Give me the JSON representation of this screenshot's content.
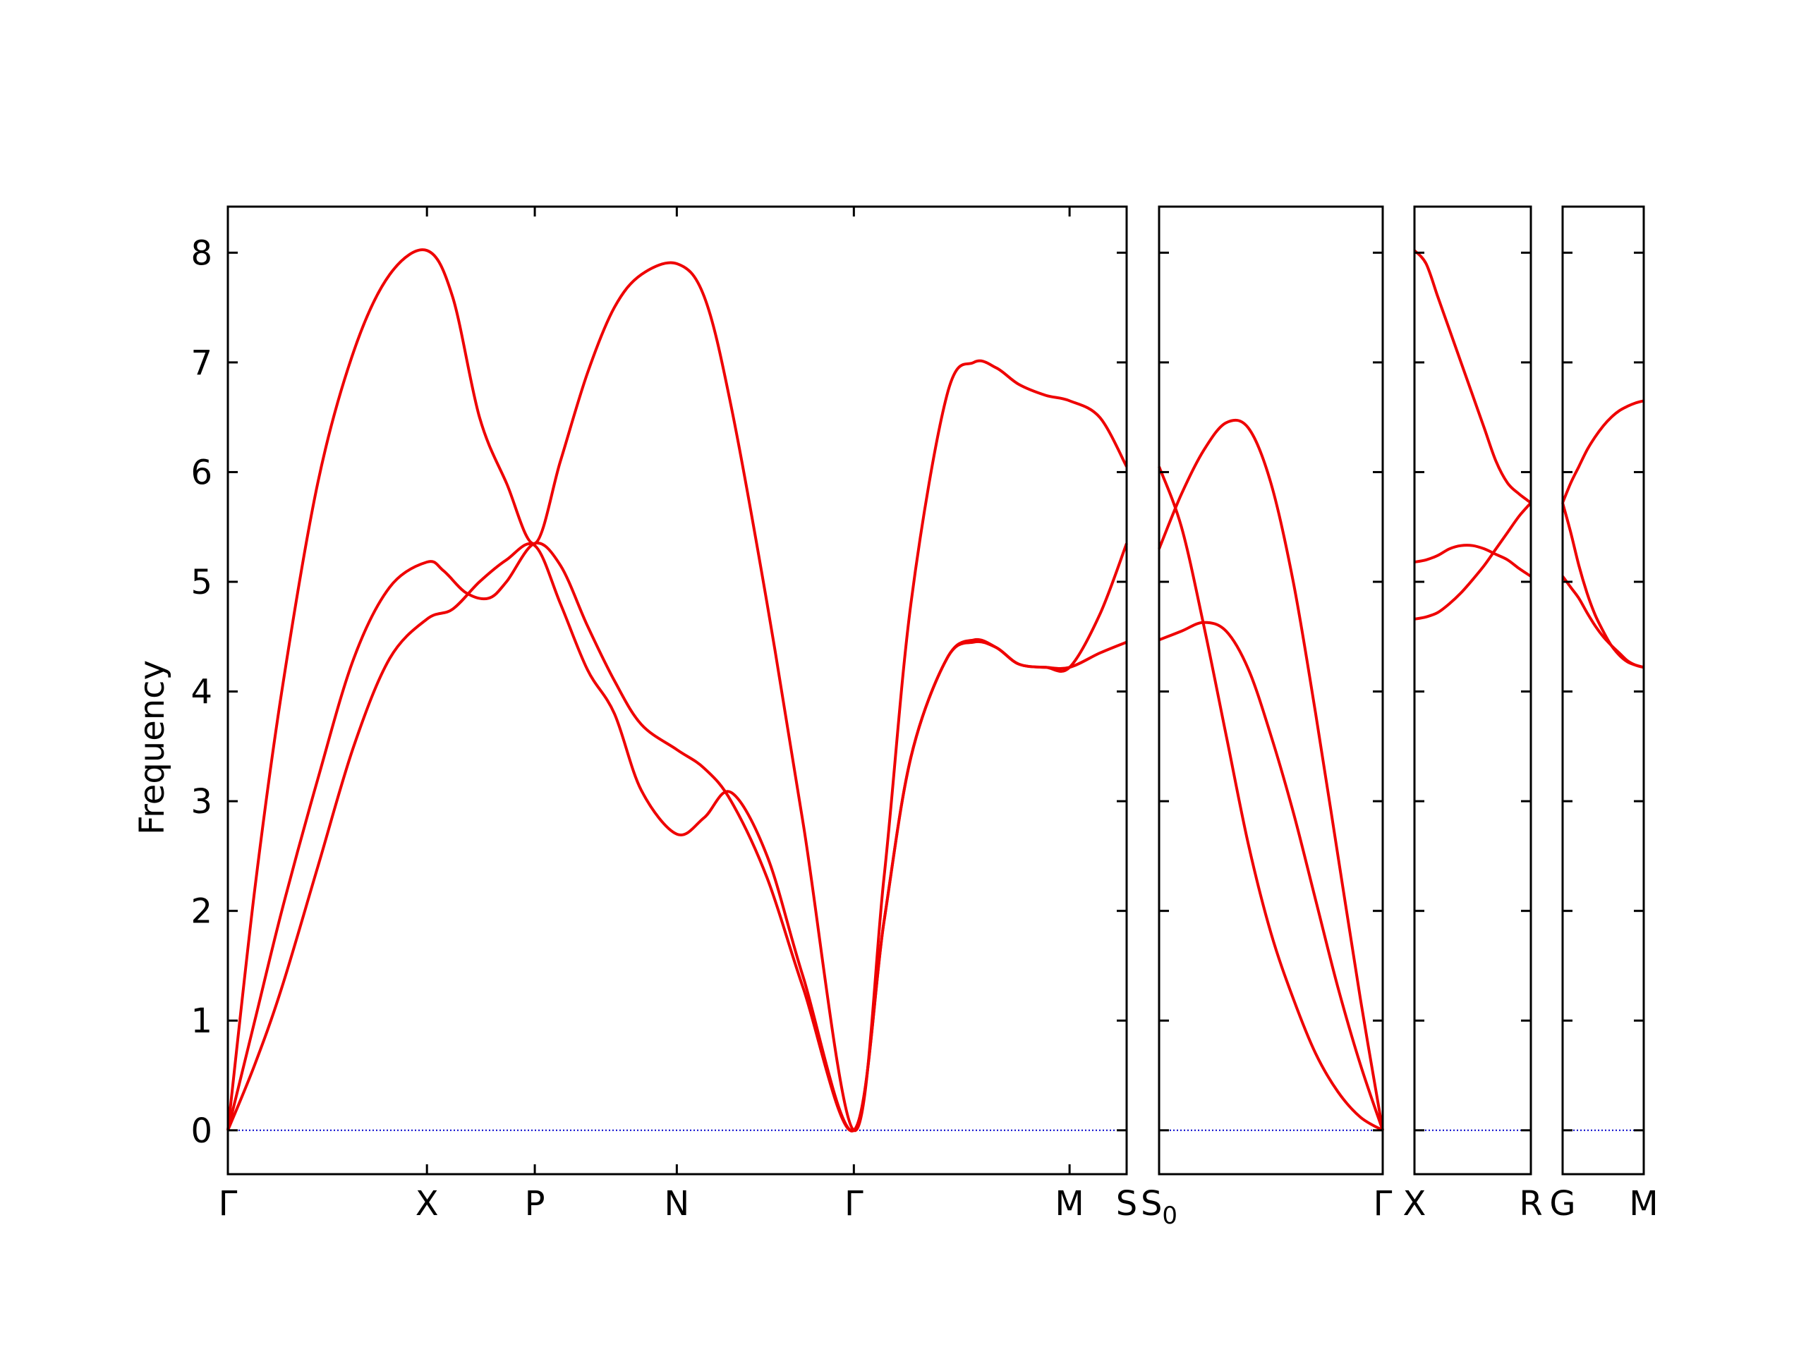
{
  "chart_data": {
    "type": "line",
    "ylabel": "Frequency",
    "ylim": [
      -0.4,
      8.42
    ],
    "yticks": [
      0,
      1,
      2,
      3,
      4,
      5,
      6,
      7,
      8
    ],
    "line_color": "#ee0000",
    "zero_line_color": "#0000cc",
    "panels": [
      {
        "xticks": [
          "Γ",
          "X",
          "P",
          "N",
          "Γ",
          "M",
          "S"
        ],
        "xtick_pos": [
          0,
          0.2215,
          0.3415,
          0.4995,
          0.6965,
          0.9365,
          1.0
        ],
        "series": [
          {
            "x": [
              0,
              0.03,
              0.06,
              0.1,
              0.14,
              0.18,
              0.2215,
              0.25,
              0.28,
              0.31,
              0.3415,
              0.37,
              0.4,
              0.43,
              0.46,
              0.4995,
              0.53,
              0.56,
              0.6,
              0.64,
              0.6965,
              0.73,
              0.76,
              0.8,
              0.83,
              0.855,
              0.88,
              0.91,
              0.9365,
              0.97,
              1.0
            ],
            "y": [
              0,
              2.2,
              4.0,
              5.9,
              7.1,
              7.8,
              8.02,
              7.6,
              6.5,
              5.9,
              5.35,
              6.1,
              6.9,
              7.5,
              7.8,
              7.9,
              7.6,
              6.6,
              4.8,
              2.8,
              0,
              2.3,
              4.8,
              6.7,
              7.0,
              6.95,
              6.8,
              6.7,
              6.65,
              6.5,
              6.05
            ]
          },
          {
            "x": [
              0,
              0.03,
              0.06,
              0.1,
              0.14,
              0.18,
              0.2215,
              0.24,
              0.265,
              0.29,
              0.31,
              0.3415,
              0.37,
              0.4,
              0.43,
              0.46,
              0.4995,
              0.53,
              0.56,
              0.6,
              0.64,
              0.6965,
              0.73,
              0.76,
              0.8,
              0.83,
              0.855,
              0.88,
              0.91,
              0.9365,
              0.97,
              1.0
            ],
            "y": [
              0,
              1.0,
              2.0,
              3.2,
              4.3,
              4.95,
              5.18,
              5.1,
              4.9,
              4.85,
              5.0,
              5.35,
              5.15,
              4.6,
              4.1,
              3.7,
              3.47,
              3.3,
              3.0,
              2.3,
              1.3,
              0,
              1.9,
              3.4,
              4.3,
              4.47,
              4.4,
              4.25,
              4.22,
              4.22,
              4.35,
              4.45
            ]
          },
          {
            "x": [
              0,
              0.03,
              0.06,
              0.1,
              0.14,
              0.18,
              0.2215,
              0.25,
              0.28,
              0.31,
              0.3415,
              0.37,
              0.4,
              0.43,
              0.46,
              0.4995,
              0.53,
              0.56,
              0.6,
              0.64,
              0.6965,
              0.73,
              0.76,
              0.8,
              0.83,
              0.855,
              0.88,
              0.91,
              0.9365,
              0.97,
              1.0
            ],
            "y": [
              0,
              0.6,
              1.3,
              2.4,
              3.5,
              4.3,
              4.66,
              4.75,
              5.0,
              5.2,
              5.33,
              4.8,
              4.2,
              3.8,
              3.1,
              2.7,
              2.85,
              3.08,
              2.5,
              1.4,
              0,
              1.9,
              3.4,
              4.3,
              4.45,
              4.4,
              4.25,
              4.22,
              4.22,
              4.7,
              5.35
            ]
          }
        ]
      },
      {
        "xticks": [
          "S",
          "Γ"
        ],
        "xtick_pos": [
          0,
          1
        ],
        "series": [
          {
            "x": [
              0,
              0.1,
              0.2,
              0.3,
              0.4,
              0.5,
              0.6,
              0.7,
              0.8,
              0.9,
              1.0
            ],
            "y": [
              6.05,
              5.5,
              4.6,
              3.6,
              2.6,
              1.8,
              1.2,
              0.7,
              0.35,
              0.12,
              0
            ]
          },
          {
            "x": [
              0,
              0.1,
              0.2,
              0.3,
              0.4,
              0.5,
              0.6,
              0.7,
              0.8,
              0.9,
              1.0
            ],
            "y": [
              5.3,
              5.8,
              6.2,
              6.45,
              6.4,
              5.9,
              5.0,
              3.8,
              2.5,
              1.2,
              0
            ]
          },
          {
            "x": [
              0,
              0.1,
              0.2,
              0.3,
              0.4,
              0.5,
              0.6,
              0.7,
              0.8,
              0.9,
              1.0
            ],
            "y": [
              4.47,
              4.55,
              4.63,
              4.55,
              4.2,
              3.6,
              2.9,
              2.1,
              1.3,
              0.6,
              0
            ]
          }
        ]
      },
      {
        "xticks": [
          "X",
          "R"
        ],
        "xtick_pos": [
          0,
          1
        ],
        "series": [
          {
            "x": [
              0,
              0.1,
              0.2,
              0.3,
              0.4,
              0.5,
              0.6,
              0.7,
              0.8,
              0.9,
              1.0
            ],
            "y": [
              8.02,
              7.9,
              7.6,
              7.3,
              7.0,
              6.7,
              6.4,
              6.1,
              5.9,
              5.8,
              5.72
            ]
          },
          {
            "x": [
              0,
              0.1,
              0.2,
              0.3,
              0.4,
              0.5,
              0.6,
              0.7,
              0.8,
              0.9,
              1.0
            ],
            "y": [
              5.18,
              5.2,
              5.24,
              5.3,
              5.33,
              5.33,
              5.3,
              5.25,
              5.2,
              5.12,
              5.05
            ]
          },
          {
            "x": [
              0,
              0.1,
              0.2,
              0.3,
              0.4,
              0.5,
              0.6,
              0.7,
              0.8,
              0.9,
              1.0
            ],
            "y": [
              4.66,
              4.68,
              4.72,
              4.8,
              4.9,
              5.02,
              5.15,
              5.3,
              5.45,
              5.6,
              5.72
            ]
          }
        ]
      },
      {
        "xticks": [
          "G",
          "M"
        ],
        "xtick_pos": [
          0,
          1
        ],
        "series": [
          {
            "x": [
              0,
              0.1,
              0.2,
              0.3,
              0.4,
              0.5,
              0.6,
              0.7,
              0.8,
              0.9,
              1.0
            ],
            "y": [
              5.72,
              5.9,
              6.05,
              6.2,
              6.32,
              6.42,
              6.5,
              6.56,
              6.6,
              6.63,
              6.65
            ]
          },
          {
            "x": [
              0,
              0.1,
              0.2,
              0.3,
              0.4,
              0.5,
              0.6,
              0.7,
              0.8,
              0.9,
              1.0
            ],
            "y": [
              5.72,
              5.45,
              5.15,
              4.9,
              4.7,
              4.55,
              4.42,
              4.33,
              4.27,
              4.24,
              4.22
            ]
          },
          {
            "x": [
              0,
              0.1,
              0.2,
              0.3,
              0.4,
              0.5,
              0.6,
              0.7,
              0.8,
              0.9,
              1.0
            ],
            "y": [
              5.05,
              4.95,
              4.85,
              4.72,
              4.6,
              4.5,
              4.42,
              4.35,
              4.28,
              4.24,
              4.22
            ]
          }
        ]
      }
    ]
  }
}
